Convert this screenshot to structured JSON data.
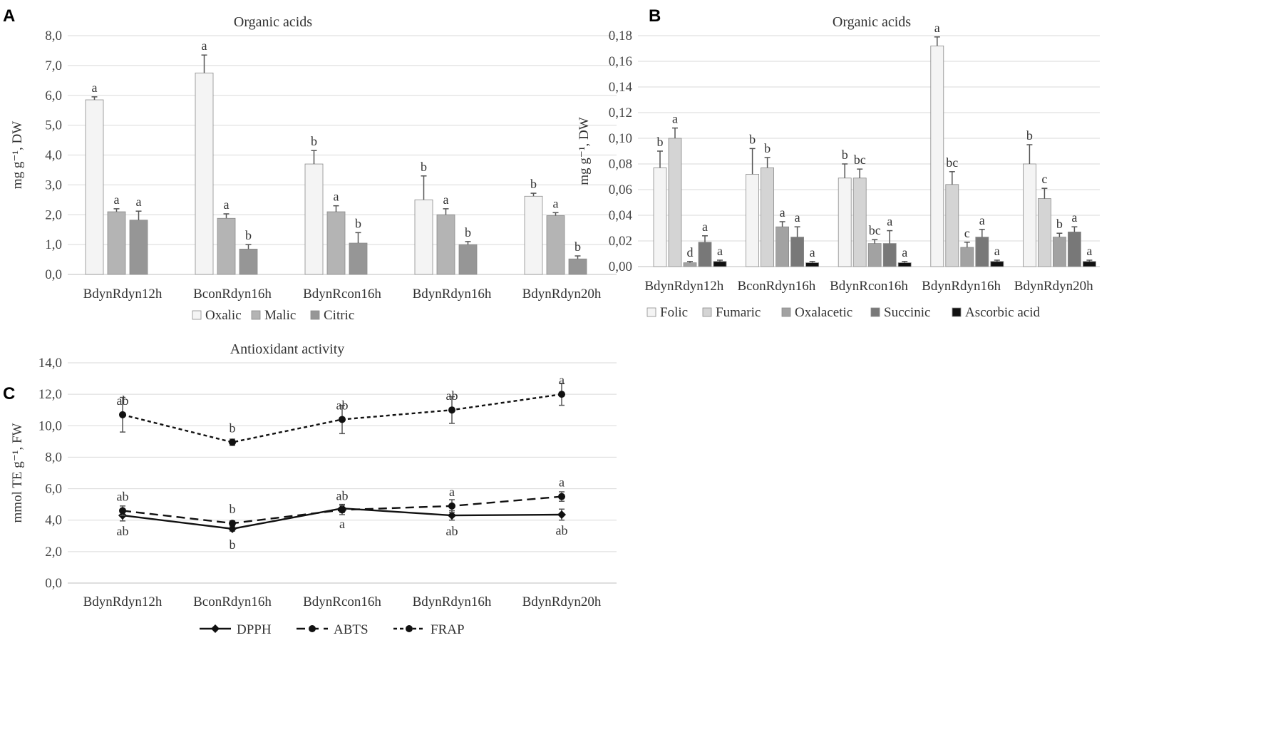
{
  "chart_data": [
    {
      "panel": "A",
      "type": "bar",
      "title": "Organic acids",
      "ylabel": "mg g⁻¹, DW",
      "ylim": [
        0,
        8
      ],
      "yticks": [
        "0,0",
        "1,0",
        "2,0",
        "3,0",
        "4,0",
        "5,0",
        "6,0",
        "7,0",
        "8,0"
      ],
      "ytick_values": [
        0,
        1,
        2,
        3,
        4,
        5,
        6,
        7,
        8
      ],
      "categories": [
        "BdynRdyn12h",
        "BconRdyn16h",
        "BdynRcon16h",
        "BdynRdyn16h",
        "BdynRdyn20h"
      ],
      "series": [
        {
          "name": "Oxalic",
          "color": "#f4f4f4",
          "values": [
            5.85,
            6.75,
            3.7,
            2.5,
            2.62
          ],
          "errors": [
            0.1,
            0.6,
            0.45,
            0.8,
            0.1
          ],
          "labels": [
            "a",
            "a",
            "b",
            "b",
            "b"
          ]
        },
        {
          "name": "Malic",
          "color": "#b4b4b4",
          "values": [
            2.1,
            1.88,
            2.1,
            2.0,
            1.97
          ],
          "errors": [
            0.1,
            0.15,
            0.2,
            0.2,
            0.1
          ],
          "labels": [
            "a",
            "a",
            "a",
            "a",
            "a"
          ]
        },
        {
          "name": "Citric",
          "color": "#969696",
          "values": [
            1.82,
            0.85,
            1.05,
            1.0,
            0.52
          ],
          "errors": [
            0.3,
            0.15,
            0.35,
            0.1,
            0.1
          ],
          "labels": [
            "a",
            "b",
            "b",
            "b",
            "b"
          ]
        }
      ]
    },
    {
      "panel": "B",
      "type": "bar",
      "title": "Organic acids",
      "ylabel": "mg g⁻¹, DW",
      "ylim": [
        0,
        0.18
      ],
      "yticks": [
        "0,00",
        "0,02",
        "0,04",
        "0,06",
        "0,08",
        "0,10",
        "0,12",
        "0,14",
        "0,16",
        "0,18"
      ],
      "ytick_values": [
        0,
        0.02,
        0.04,
        0.06,
        0.08,
        0.1,
        0.12,
        0.14,
        0.16,
        0.18
      ],
      "categories": [
        "BdynRdyn12h",
        "BconRdyn16h",
        "BdynRcon16h",
        "BdynRdyn16h",
        "BdynRdyn20h"
      ],
      "series": [
        {
          "name": "Folic",
          "color": "#f4f4f4",
          "values": [
            0.077,
            0.072,
            0.069,
            0.172,
            0.08
          ],
          "errors": [
            0.013,
            0.02,
            0.011,
            0.007,
            0.015
          ],
          "labels": [
            "b",
            "b",
            "b",
            "a",
            "b"
          ]
        },
        {
          "name": "Fumaric",
          "color": "#d4d4d4",
          "values": [
            0.1,
            0.077,
            0.069,
            0.064,
            0.053
          ],
          "errors": [
            0.008,
            0.008,
            0.007,
            0.01,
            0.008
          ],
          "labels": [
            "a",
            "b",
            "bc",
            "bc",
            "c"
          ]
        },
        {
          "name": "Oxalacetic",
          "color": "#a2a2a2",
          "values": [
            0.003,
            0.031,
            0.018,
            0.015,
            0.023
          ],
          "errors": [
            0.001,
            0.004,
            0.003,
            0.004,
            0.003
          ],
          "labels": [
            "d",
            "a",
            "bc",
            "c",
            "b"
          ]
        },
        {
          "name": "Succinic",
          "color": "#787878",
          "values": [
            0.019,
            0.023,
            0.018,
            0.023,
            0.027
          ],
          "errors": [
            0.005,
            0.008,
            0.01,
            0.006,
            0.004
          ],
          "labels": [
            "a",
            "a",
            "a",
            "a",
            "a"
          ]
        },
        {
          "name": "Ascorbic acid",
          "color": "#111111",
          "values": [
            0.004,
            0.003,
            0.003,
            0.004,
            0.004
          ],
          "errors": [
            0.001,
            0.001,
            0.001,
            0.001,
            0.001
          ],
          "labels": [
            "a",
            "a",
            "a",
            "a",
            "a"
          ]
        }
      ]
    },
    {
      "panel": "C",
      "type": "line",
      "title": "Antioxidant activity",
      "ylabel": "mmol TE g⁻¹, FW",
      "ylim": [
        0,
        14
      ],
      "yticks": [
        "0,0",
        "2,0",
        "4,0",
        "6,0",
        "8,0",
        "10,0",
        "12,0",
        "14,0"
      ],
      "ytick_values": [
        0,
        2,
        4,
        6,
        8,
        10,
        12,
        14
      ],
      "categories": [
        "BdynRdyn12h",
        "BconRdyn16h",
        "BdynRcon16h",
        "BdynRdyn16h",
        "BdynRdyn20h"
      ],
      "series": [
        {
          "name": "DPPH",
          "dash": "",
          "values": [
            4.3,
            3.45,
            4.75,
            4.3,
            4.35
          ],
          "errors": [
            0.35,
            0.15,
            0.25,
            0.3,
            0.35
          ],
          "labels": [
            "ab",
            "b",
            "a",
            "ab",
            "ab"
          ],
          "label_pos": "below"
        },
        {
          "name": "ABTS",
          "dash": "12,7",
          "values": [
            4.6,
            3.8,
            4.65,
            4.9,
            5.5
          ],
          "errors": [
            0.3,
            0.15,
            0.3,
            0.4,
            0.3
          ],
          "labels": [
            "ab",
            "b",
            "ab",
            "a",
            "a"
          ],
          "label_pos": "above"
        },
        {
          "name": "FRAP",
          "dash": "5,4",
          "values": [
            10.7,
            8.95,
            10.4,
            11.0,
            12.0
          ],
          "errors": [
            1.1,
            0.2,
            0.9,
            0.85,
            0.7
          ],
          "labels": [
            "ab",
            "b",
            "ab",
            "ab",
            "a"
          ],
          "label_pos": "above"
        }
      ]
    }
  ],
  "panel_labels": {
    "a": "A",
    "b": "B",
    "c": "C"
  }
}
